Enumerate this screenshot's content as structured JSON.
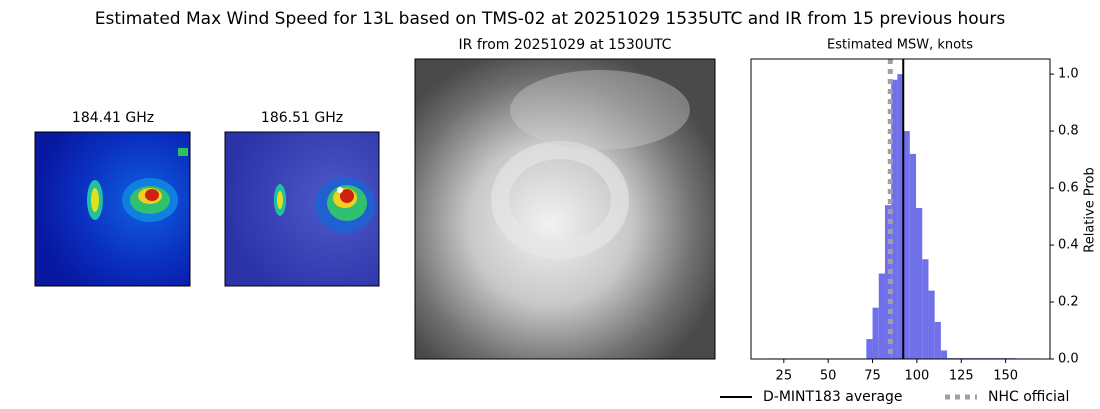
{
  "title": "Estimated Max Wind Speed for 13L based on TMS-02 at 20251029 1535UTC and IR from 15 previous hours",
  "panels": [
    {
      "title": "184.41 GHz"
    },
    {
      "title": "186.51 GHz"
    },
    {
      "title": "IR from 20251029 at 1530UTC"
    }
  ],
  "chart_data": {
    "type": "histogram",
    "title": "Estimated MSW, knots",
    "ylabel": "Relative Prob",
    "color": "#7070ea",
    "bins": [
      15.5,
      19,
      22.5,
      26,
      29.5,
      33,
      36.5,
      40,
      43.5,
      47,
      50.5,
      54,
      57.5,
      61,
      64.5,
      68,
      71.5,
      75,
      78.5,
      82,
      85.5,
      89,
      92.5,
      96,
      99.5,
      103,
      106.5,
      110,
      113.5,
      117,
      120.5,
      124,
      127.5,
      131,
      134.5,
      138,
      141.5,
      145,
      148.5,
      152,
      155.5,
      159,
      162.5,
      166,
      169.5
    ],
    "counts": [
      0.002,
      0.002,
      0.002,
      0.002,
      0.002,
      0.002,
      0.002,
      0.002,
      0.002,
      0.002,
      0.002,
      0.002,
      0.002,
      0.002,
      0.002,
      0.002,
      0.07,
      0.18,
      0.3,
      0.54,
      0.98,
      1.0,
      0.8,
      0.72,
      0.53,
      0.35,
      0.24,
      0.13,
      0.03,
      0.003,
      0.003,
      0.003,
      0.003,
      0.003,
      0.003,
      0.003,
      0.003,
      0.003,
      0.003,
      0.003,
      0.002,
      0.002,
      0.002,
      0.002
    ],
    "xlim": [
      6.5,
      175
    ],
    "ylim": [
      0,
      1.053
    ],
    "xticks": [
      25,
      50,
      75,
      100,
      125,
      150
    ],
    "yticks": [
      {
        "value": 0,
        "label": "0.0"
      },
      0.2,
      0.4,
      0.6,
      0.8,
      {
        "value": 1,
        "label": "1.0"
      }
    ],
    "lines": [
      {
        "name": "D-MINT183 average",
        "x": 92.3,
        "color": "#000000",
        "style": "solid"
      },
      {
        "name": "NHC official",
        "x": 85,
        "color": "#a0a0a0",
        "style": "dotted"
      }
    ]
  }
}
